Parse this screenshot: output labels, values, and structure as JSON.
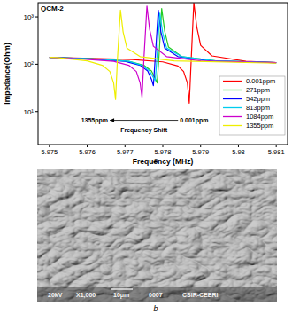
{
  "chart_data": {
    "type": "line",
    "title": "QCM-2",
    "x_label": "Frequency (MHz)",
    "y_label": "Impedance(Ohm)",
    "log": "y",
    "grid": false,
    "legend": "right",
    "xlim": [
      5.9747,
      5.9813
    ],
    "xticks": [
      5.975,
      5.976,
      5.977,
      5.978,
      5.979,
      5.98,
      {
        "value": 5.981,
        "label": "5.981"
      }
    ],
    "ylim": [
      2,
      2000
    ],
    "yticks": [
      {
        "value": 10,
        "label": "10¹"
      },
      {
        "value": 100,
        "label": "10²"
      },
      {
        "value": 1000,
        "label": "10³"
      }
    ],
    "annotations": [
      {
        "text": "1355ppm",
        "x": 5.97655,
        "y": 6
      },
      {
        "text": "0.001ppm",
        "x": 5.97845,
        "y": 6
      },
      {
        "text": "Frequency Shift",
        "x": 5.9775,
        "y": 3.7
      }
    ],
    "series": [
      {
        "name": "0.001ppm",
        "color": "#ff0000",
        "x": [
          5.975,
          5.9772,
          5.978,
          5.9784,
          5.97855,
          5.97865,
          5.9787,
          5.97875,
          5.97882,
          5.9789,
          5.979,
          5.9793,
          5.9802,
          5.981
        ],
        "values": [
          140,
          125,
          112,
          92,
          70,
          40,
          15,
          120,
          2000,
          600,
          250,
          150,
          115,
          108
        ]
      },
      {
        "name": "271ppm",
        "color": "#22cc22",
        "x": [
          5.975,
          5.9763,
          5.9771,
          5.9775,
          5.9777,
          5.9778,
          5.97785,
          5.9779,
          5.97797,
          5.97805,
          5.97815,
          5.9785,
          5.9794,
          5.981
        ],
        "values": [
          140,
          128,
          115,
          95,
          72,
          50,
          40,
          150,
          1500,
          500,
          230,
          145,
          118,
          108
        ]
      },
      {
        "name": "542ppm",
        "color": "#0000ff",
        "x": [
          5.975,
          5.9762,
          5.977,
          5.9774,
          5.9776,
          5.9777,
          5.97775,
          5.9778,
          5.97788,
          5.97795,
          5.97805,
          5.9784,
          5.9793,
          5.981
        ],
        "values": [
          140,
          128,
          115,
          95,
          72,
          48,
          35,
          140,
          1400,
          480,
          220,
          145,
          118,
          108
        ]
      },
      {
        "name": "813ppm",
        "color": "#00ccee",
        "x": [
          5.975,
          5.9763,
          5.9771,
          5.97745,
          5.97765,
          5.97775,
          5.9778,
          5.97785,
          5.97792,
          5.978,
          5.9781,
          5.9785,
          5.9794,
          5.981
        ],
        "values": [
          140,
          128,
          115,
          95,
          72,
          52,
          45,
          160,
          1200,
          450,
          220,
          145,
          118,
          108
        ]
      },
      {
        "name": "1084ppm",
        "color": "#cc00cc",
        "x": [
          5.975,
          5.9759,
          5.9767,
          5.9771,
          5.9773,
          5.9774,
          5.97745,
          5.9775,
          5.97758,
          5.97765,
          5.97775,
          5.9781,
          5.979,
          5.981
        ],
        "values": [
          140,
          128,
          115,
          95,
          70,
          40,
          20,
          130,
          1700,
          550,
          240,
          145,
          118,
          108
        ]
      },
      {
        "name": "1355ppm",
        "color": "#eeee00",
        "x": [
          5.975,
          5.9752,
          5.976,
          5.9764,
          5.9766,
          5.9767,
          5.97675,
          5.9768,
          5.97688,
          5.97695,
          5.97705,
          5.9774,
          5.9783,
          5.981
        ],
        "values": [
          140,
          138,
          118,
          95,
          70,
          40,
          18,
          130,
          1400,
          480,
          220,
          145,
          118,
          105
        ]
      }
    ]
  },
  "figure": {
    "panels": [
      "a",
      "b"
    ]
  },
  "sem_image": {
    "info": [
      "20kV",
      "X1,000",
      "10μm",
      "0007",
      "CSIR-CEERI"
    ]
  }
}
